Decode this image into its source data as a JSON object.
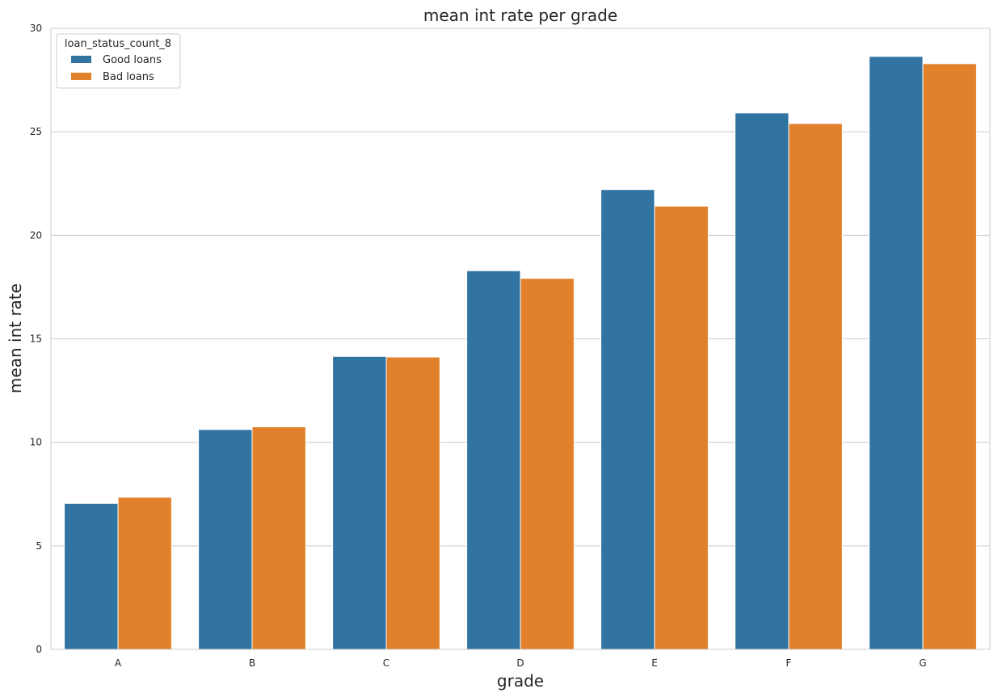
{
  "chart_data": {
    "type": "bar",
    "title": "mean int rate per grade",
    "xlabel": "grade",
    "ylabel": "mean int rate",
    "categories": [
      "A",
      "B",
      "C",
      "D",
      "E",
      "F",
      "G"
    ],
    "series": [
      {
        "name": "Good loans",
        "color": "#3274a1",
        "values": [
          7.05,
          10.62,
          14.15,
          18.29,
          22.21,
          25.91,
          28.64
        ]
      },
      {
        "name": "Bad loans",
        "color": "#e1812c",
        "values": [
          7.35,
          10.75,
          14.12,
          17.92,
          21.41,
          25.4,
          28.29
        ]
      }
    ],
    "ylim": [
      0,
      30
    ],
    "yticks": [
      0,
      5,
      10,
      15,
      20,
      25,
      30
    ],
    "grid": "horizontal",
    "legend": {
      "title": "loan_status_count_8",
      "position": "top-left"
    }
  }
}
